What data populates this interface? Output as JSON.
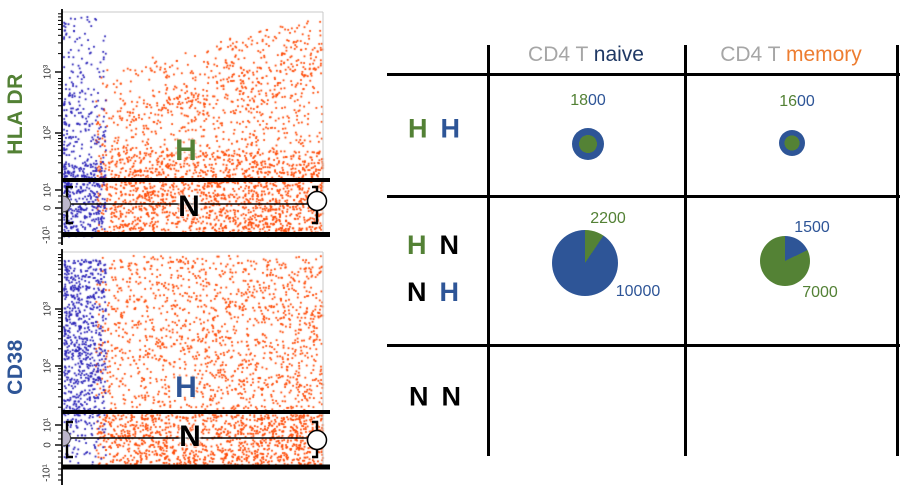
{
  "plots": [
    {
      "y_axis_label": "HLA DR",
      "y_axis_label_color": "#538135",
      "y_ticks": [
        "10³",
        "10²",
        "10¹",
        "0",
        "-10¹"
      ],
      "gate_labels": [
        {
          "text": "H",
          "color": "#538135"
        },
        {
          "text": "N",
          "color": "#000000"
        }
      ],
      "scatter": {
        "profile": "hladr",
        "seed": 1234,
        "series": [
          {
            "name": "naive",
            "color": "#2B24B8",
            "count": 620
          },
          {
            "name": "memory",
            "color": "#FF4A06",
            "count": 2600
          }
        ]
      }
    },
    {
      "y_axis_label": "CD38",
      "y_axis_label_color": "#2E5597",
      "y_ticks": [
        "10³",
        "10²",
        "10¹",
        "0",
        "-10¹"
      ],
      "gate_labels": [
        {
          "text": "H",
          "color": "#2E5597"
        },
        {
          "text": "N",
          "color": "#000000"
        }
      ],
      "scatter": {
        "profile": "cd38",
        "seed": 5678,
        "series": [
          {
            "name": "naive",
            "color": "#2B24B8",
            "count": 780
          },
          {
            "name": "memory",
            "color": "#FF4A06",
            "count": 2600
          }
        ]
      }
    }
  ],
  "table": {
    "headers": [
      {
        "prefix": "CD4 T ",
        "word": "naive",
        "prefix_color": "#A6A6A6",
        "word_color": "#1F3864"
      },
      {
        "prefix": "CD4 T ",
        "word": "memory",
        "prefix_color": "#A6A6A6",
        "word_color": "#ED7D31"
      }
    ],
    "row_labels": {
      "r1": [
        {
          "t": "H",
          "c": "#538135"
        },
        {
          "t": "H",
          "c": "#2E5597"
        }
      ],
      "r2a": [
        {
          "t": "H",
          "c": "#538135"
        },
        {
          "t": "N",
          "c": "#000000"
        }
      ],
      "r2b": [
        {
          "t": "N",
          "c": "#000000"
        },
        {
          "t": "H",
          "c": "#2E5597"
        }
      ],
      "r3": [
        {
          "t": "N",
          "c": "#000000"
        },
        {
          "t": "N",
          "c": "#000000"
        }
      ]
    },
    "cells": {
      "hh_naive": {
        "value_parts": [
          {
            "t": "18",
            "c": "#538135"
          },
          {
            "t": "00",
            "c": "#2E5597"
          }
        ],
        "pie": {
          "kind": "donut",
          "outer_color": "#2E5597",
          "inner_color": "#548235",
          "r": 16,
          "inner_r": 9
        }
      },
      "hh_memory": {
        "value_parts": [
          {
            "t": "16",
            "c": "#538135"
          },
          {
            "t": "00",
            "c": "#2E5597"
          }
        ],
        "pie": {
          "kind": "donut",
          "outer_color": "#2E5597",
          "inner_color": "#548235",
          "r": 13,
          "inner_r": 7.5
        }
      },
      "hn_naive": {
        "top_value": {
          "t": "2200",
          "c": "#538135"
        },
        "bottom_value": {
          "t": "10000",
          "c": "#2E5597"
        },
        "pie": {
          "kind": "pie",
          "base_color": "#2E5597",
          "wedge_color": "#548235",
          "wedge_deg": 34,
          "r": 33
        }
      },
      "hn_memory": {
        "top_value": {
          "t": "1500",
          "c": "#2E5597"
        },
        "bottom_value": {
          "t": "7000",
          "c": "#538135"
        },
        "pie": {
          "kind": "pie",
          "base_color": "#548235",
          "wedge_color": "#2E5597",
          "wedge_deg": 64,
          "r": 25
        }
      }
    }
  },
  "chart_data": [
    {
      "type": "scatter",
      "subtype": "flow-cytometry-dot-plot",
      "ylabel": "HLA DR",
      "yticks": [
        "10³",
        "10²",
        "10¹",
        "0",
        "-10¹"
      ],
      "gates": [
        "H",
        "N"
      ],
      "series": [
        {
          "name": "CD4 T naive",
          "color": "#2B24B8"
        },
        {
          "name": "CD4 T memory",
          "color": "#FF4A06"
        }
      ]
    },
    {
      "type": "scatter",
      "subtype": "flow-cytometry-dot-plot",
      "ylabel": "CD38",
      "yticks": [
        "10³",
        "10²",
        "10¹",
        "0",
        "-10¹"
      ],
      "gates": [
        "H",
        "N"
      ],
      "series": [
        {
          "name": "CD4 T naive",
          "color": "#2B24B8"
        },
        {
          "name": "CD4 T memory",
          "color": "#FF4A06"
        }
      ]
    },
    {
      "type": "pie",
      "row": "H H",
      "column": "CD4 T naive",
      "value": 1800,
      "slices": [
        {
          "color": "blue",
          "role": "outer"
        },
        {
          "color": "green",
          "role": "inner"
        }
      ]
    },
    {
      "type": "pie",
      "row": "H H",
      "column": "CD4 T memory",
      "value": 1600,
      "slices": [
        {
          "color": "blue",
          "role": "outer"
        },
        {
          "color": "green",
          "role": "inner"
        }
      ]
    },
    {
      "type": "pie",
      "row": "H N / N H",
      "column": "CD4 T naive",
      "values": [
        {
          "series": "green",
          "value": 2200
        },
        {
          "series": "blue",
          "value": 10000
        }
      ]
    },
    {
      "type": "pie",
      "row": "H N / N H",
      "column": "CD4 T memory",
      "values": [
        {
          "series": "blue",
          "value": 1500
        },
        {
          "series": "green",
          "value": 7000
        }
      ]
    },
    {
      "type": "table",
      "row": "N N",
      "columns": [
        "CD4 T naive",
        "CD4 T memory"
      ],
      "values": [
        null,
        null
      ]
    }
  ]
}
